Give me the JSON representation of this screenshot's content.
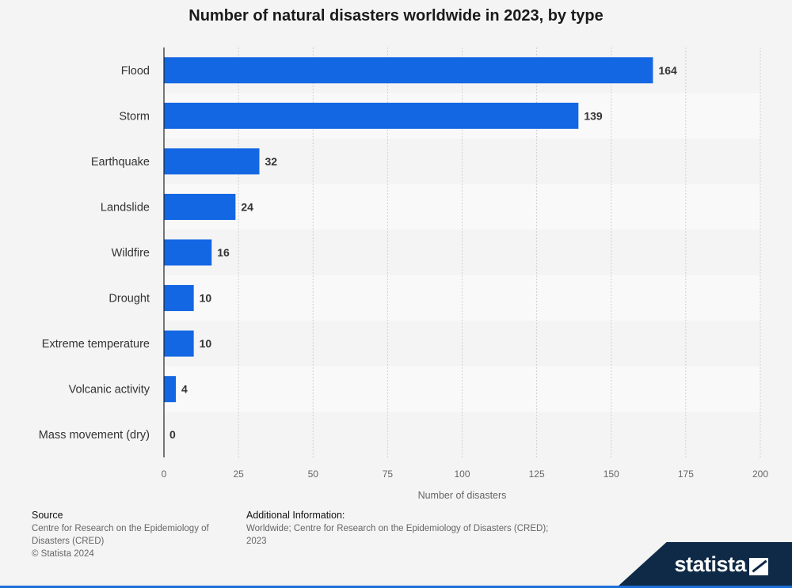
{
  "chart_data": {
    "type": "bar",
    "orientation": "horizontal",
    "title": "Number of natural disasters worldwide in 2023, by type",
    "xlabel": "Number of disasters",
    "ylabel": "",
    "categories": [
      "Flood",
      "Storm",
      "Earthquake",
      "Landslide",
      "Wildfire",
      "Drought",
      "Extreme temperature",
      "Volcanic activity",
      "Mass movement (dry)"
    ],
    "values": [
      164,
      139,
      32,
      24,
      16,
      10,
      10,
      4,
      0
    ],
    "xlim": [
      0,
      200
    ],
    "ticks": [
      0,
      25,
      50,
      75,
      100,
      125,
      150,
      175,
      200
    ],
    "grid": true,
    "bar_color": "#1467e3",
    "data_labels": true
  },
  "footer": {
    "source_head": "Source",
    "source_line1": "Centre for Research on the Epidemiology of",
    "source_line2": "Disasters (CRED)",
    "copyright": "© Statista 2024",
    "info_head": "Additional Information:",
    "info_line1": "Worldwide; Centre for Research on the Epidemiology of Disasters (CRED);",
    "info_line2": "2023"
  },
  "brand": {
    "name": "statista"
  }
}
